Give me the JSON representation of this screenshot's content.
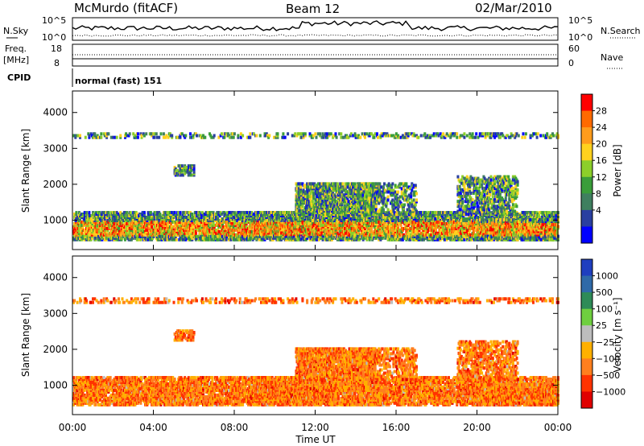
{
  "header": {
    "station": "McMurdo (fitACF)",
    "beam": "Beam 12",
    "date": "02/Mar/2010"
  },
  "summary": {
    "nsky_label": "N.Sky",
    "nsearch_label": "N.Search",
    "noise_ticks": [
      "10^5",
      "10^0"
    ],
    "freq_label_line1": "Freq.",
    "freq_label_line2": "[MHz]",
    "freq_ticks": [
      "18",
      "8"
    ],
    "nave_label": "Nave",
    "nave_ticks": [
      "60",
      "0"
    ],
    "cpid_label": "CPID",
    "cpid_text": "normal (fast) 151"
  },
  "chart_data": [
    {
      "type": "heatmap",
      "panel": "power",
      "ylabel": "Slant Range [km]",
      "yticks": [
        1000,
        2000,
        3000,
        4000
      ],
      "colorbar_label": "Power [dB]",
      "colorbar_ticks": [
        "28",
        "24",
        "20",
        "16",
        "12",
        "8",
        "4"
      ],
      "colorbar_colors": [
        "#ff0000",
        "#ff6a00",
        "#ff9c1c",
        "#ffd21e",
        "#8ccf2a",
        "#3a9d3a",
        "#3f7f5f",
        "#2a3fa0",
        "#0000ff"
      ],
      "xticks": [
        "00:00",
        "04:00",
        "08:00",
        "12:00",
        "16:00",
        "20:00",
        "00:00"
      ],
      "xlim_hours": [
        0,
        24
      ],
      "ylim_km": [
        180,
        4600
      ]
    },
    {
      "type": "heatmap",
      "panel": "velocity",
      "ylabel": "Slant Range [km]",
      "yticks": [
        1000,
        2000,
        3000,
        4000
      ],
      "colorbar_label": "Velocity [m s⁻¹]",
      "colorbar_ticks": [
        "1000",
        "500",
        "100",
        "25",
        "−25",
        "−100",
        "−500",
        "−1000"
      ],
      "colorbar_colors": [
        "#1f3fbf",
        "#2f6aa8",
        "#2e8b57",
        "#6fcf3f",
        "#bdbdbd",
        "#ffb000",
        "#ff7f1e",
        "#ff3300",
        "#e00000"
      ],
      "xticks": [
        "00:00",
        "04:00",
        "08:00",
        "12:00",
        "16:00",
        "20:00",
        "00:00"
      ],
      "xlabel": "Time UT",
      "xlim_hours": [
        0,
        24
      ],
      "ylim_km": [
        180,
        4600
      ]
    }
  ]
}
